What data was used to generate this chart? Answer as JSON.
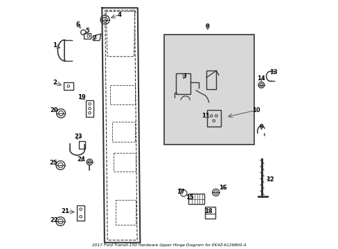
{
  "title": "2017 Ford Transit-150 Hardware Upper Hinge Diagram for EK4Z-6126800-A",
  "bg_color": "#ffffff",
  "fig_width": 4.89,
  "fig_height": 3.6,
  "dpi": 100,
  "label_color": "#000000",
  "line_color": "#555555",
  "outline_color": "#333333",
  "box_color": "#d8d8d8",
  "parts_positions": {
    "1": [
      0.038,
      0.82,
      0.068,
      0.805
    ],
    "2": [
      0.038,
      0.67,
      0.073,
      0.655
    ],
    "3": [
      0.56,
      0.695,
      0.555,
      0.675
    ],
    "4": [
      0.298,
      0.945,
      0.255,
      0.928
    ],
    "5": [
      0.168,
      0.878,
      0.168,
      0.863
    ],
    "6": [
      0.13,
      0.905,
      0.148,
      0.882
    ],
    "7": [
      0.198,
      0.848,
      0.208,
      0.85
    ],
    "8": [
      0.655,
      0.895,
      0.655,
      0.875
    ],
    "9": [
      0.872,
      0.49,
      0.872,
      0.47
    ],
    "10": [
      0.852,
      0.558,
      0.728,
      0.53
    ],
    "11": [
      0.648,
      0.535,
      0.668,
      0.522
    ],
    "12": [
      0.908,
      0.278,
      0.893,
      0.278
    ],
    "13": [
      0.922,
      0.712,
      0.908,
      0.696
    ],
    "14": [
      0.872,
      0.685,
      0.872,
      0.667
    ],
    "15": [
      0.582,
      0.205,
      0.6,
      0.218
    ],
    "16": [
      0.718,
      0.243,
      0.705,
      0.232
    ],
    "17": [
      0.545,
      0.228,
      0.558,
      0.222
    ],
    "18": [
      0.658,
      0.148,
      0.663,
      0.162
    ],
    "19": [
      0.145,
      0.61,
      0.168,
      0.595
    ],
    "20": [
      0.035,
      0.558,
      0.055,
      0.548
    ],
    "21": [
      0.078,
      0.148,
      0.126,
      0.145
    ],
    "22": [
      0.035,
      0.112,
      0.055,
      0.108
    ],
    "23": [
      0.132,
      0.452,
      0.122,
      0.43
    ],
    "24": [
      0.145,
      0.358,
      0.168,
      0.35
    ],
    "25": [
      0.032,
      0.345,
      0.052,
      0.338
    ]
  }
}
